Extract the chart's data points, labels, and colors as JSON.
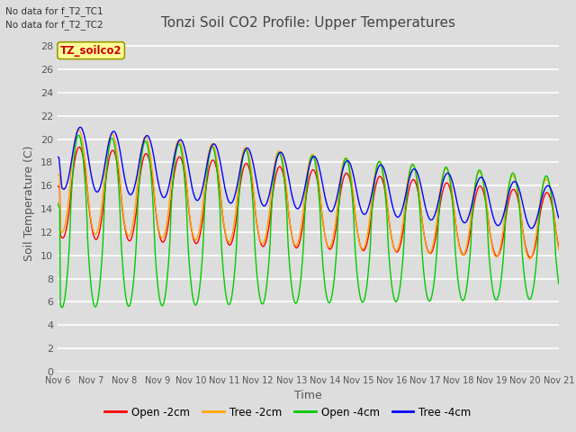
{
  "title": "Tonzi Soil CO2 Profile: Upper Temperatures",
  "xlabel": "Time",
  "ylabel": "Soil Temperature (C)",
  "corner_text_1": "No data for f_T2_TC1",
  "corner_text_2": "No data for f_T2_TC2",
  "legend_label": "TZ_soilco2",
  "series_labels": [
    "Open -2cm",
    "Tree -2cm",
    "Open -4cm",
    "Tree -4cm"
  ],
  "series_colors": [
    "#ff0000",
    "#ffa500",
    "#00cc00",
    "#0000ff"
  ],
  "ylim": [
    0,
    29
  ],
  "yticks": [
    0,
    2,
    4,
    6,
    8,
    10,
    12,
    14,
    16,
    18,
    20,
    22,
    24,
    26,
    28
  ],
  "xtick_labels": [
    "Nov 6",
    "Nov 7",
    "Nov 8",
    "Nov 9",
    "Nov 10",
    "Nov 11",
    "Nov 12",
    "Nov 13",
    "Nov 14",
    "Nov 15",
    "Nov 16",
    "Nov 17",
    "Nov 18",
    "Nov 19",
    "Nov 20",
    "Nov 21"
  ],
  "bg_color": "#dddddd",
  "grid_color": "#ffffff",
  "legend_box_facecolor": "#ffff99",
  "legend_box_edgecolor": "#999900",
  "legend_text_color": "#cc0000",
  "title_color": "#444444",
  "axis_label_color": "#555555",
  "tick_color": "#555555"
}
